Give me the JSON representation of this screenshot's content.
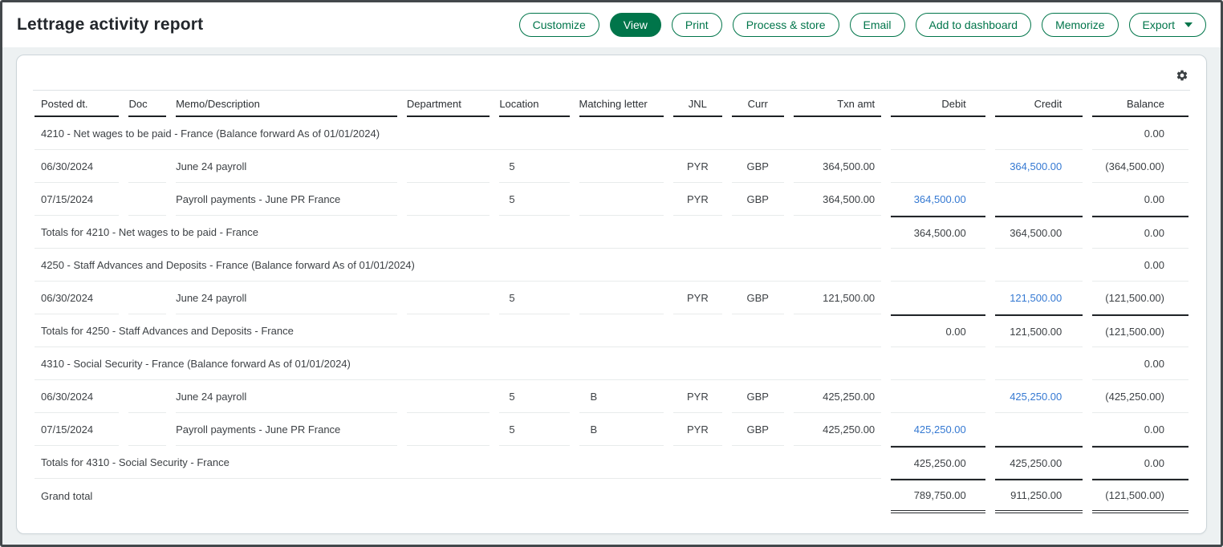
{
  "page": {
    "title": "Lettrage activity report"
  },
  "colors": {
    "accent_green": "#00754a",
    "link_blue": "#3579d2",
    "panel_bg": "#ffffff",
    "page_bg": "#edf1f2"
  },
  "icons": {
    "settings": "gear-icon",
    "export_caret": "chevron-down-icon"
  },
  "toolbar": {
    "buttons": [
      {
        "id": "customize",
        "label": "Customize",
        "variant": "outline"
      },
      {
        "id": "view",
        "label": "View",
        "variant": "filled"
      },
      {
        "id": "print",
        "label": "Print",
        "variant": "outline"
      },
      {
        "id": "process-store",
        "label": "Process & store",
        "variant": "outline"
      },
      {
        "id": "email",
        "label": "Email",
        "variant": "outline"
      },
      {
        "id": "add-to-dashboard",
        "label": "Add to dashboard",
        "variant": "outline"
      },
      {
        "id": "memorize",
        "label": "Memorize",
        "variant": "outline"
      },
      {
        "id": "export",
        "label": "Export",
        "variant": "outline",
        "caret": true
      }
    ]
  },
  "table": {
    "columns": [
      {
        "id": "posted-dt",
        "label": "Posted dt.",
        "align": "left"
      },
      {
        "id": "doc",
        "label": "Doc",
        "align": "left"
      },
      {
        "id": "memo-description",
        "label": "Memo/Description",
        "align": "left"
      },
      {
        "id": "department",
        "label": "Department",
        "align": "left"
      },
      {
        "id": "location",
        "label": "Location",
        "align": "left"
      },
      {
        "id": "matching-letter",
        "label": "Matching letter",
        "align": "left"
      },
      {
        "id": "jnl",
        "label": "JNL",
        "align": "center"
      },
      {
        "id": "curr",
        "label": "Curr",
        "align": "center"
      },
      {
        "id": "txn-amt",
        "label": "Txn amt",
        "align": "right"
      },
      {
        "id": "debit",
        "label": "Debit",
        "align": "right"
      },
      {
        "id": "credit",
        "label": "Credit",
        "align": "right"
      },
      {
        "id": "balance",
        "label": "Balance",
        "align": "right"
      }
    ],
    "rows": [
      {
        "type": "section",
        "label": "4210 - Net wages to be paid - France (Balance forward As of 01/01/2024)",
        "debit": "",
        "credit": "",
        "balance": "0.00"
      },
      {
        "type": "detail",
        "posted": "06/30/2024",
        "doc": "",
        "memo": "June 24 payroll",
        "department": "",
        "location": "5",
        "matching": "",
        "jnl": "PYR",
        "curr": "GBP",
        "txn": "364,500.00",
        "debit": "",
        "credit": "364,500.00",
        "credit_link": true,
        "balance": "(364,500.00)"
      },
      {
        "type": "detail",
        "posted": "07/15/2024",
        "doc": "",
        "memo": "Payroll payments - June PR France",
        "department": "",
        "location": "5",
        "matching": "",
        "jnl": "PYR",
        "curr": "GBP",
        "txn": "364,500.00",
        "debit": "364,500.00",
        "debit_link": true,
        "credit": "",
        "balance": "0.00"
      },
      {
        "type": "totals",
        "label": "Totals for 4210 - Net wages to be paid - France",
        "debit": "364,500.00",
        "credit": "364,500.00",
        "balance": "0.00"
      },
      {
        "type": "section",
        "label": "4250 - Staff Advances and Deposits - France (Balance forward As of 01/01/2024)",
        "debit": "",
        "credit": "",
        "balance": "0.00"
      },
      {
        "type": "detail",
        "posted": "06/30/2024",
        "doc": "",
        "memo": "June 24 payroll",
        "department": "",
        "location": "5",
        "matching": "",
        "jnl": "PYR",
        "curr": "GBP",
        "txn": "121,500.00",
        "debit": "",
        "credit": "121,500.00",
        "credit_link": true,
        "balance": "(121,500.00)"
      },
      {
        "type": "totals",
        "label": "Totals for 4250 - Staff Advances and Deposits - France",
        "debit": "0.00",
        "credit": "121,500.00",
        "balance": "(121,500.00)"
      },
      {
        "type": "section",
        "label": "4310 - Social Security - France (Balance forward As of 01/01/2024)",
        "debit": "",
        "credit": "",
        "balance": "0.00"
      },
      {
        "type": "detail",
        "posted": "06/30/2024",
        "doc": "",
        "memo": "June 24 payroll",
        "department": "",
        "location": "5",
        "matching": "B",
        "jnl": "PYR",
        "curr": "GBP",
        "txn": "425,250.00",
        "debit": "",
        "credit": "425,250.00",
        "credit_link": true,
        "balance": "(425,250.00)"
      },
      {
        "type": "detail",
        "posted": "07/15/2024",
        "doc": "",
        "memo": "Payroll payments - June PR France",
        "department": "",
        "location": "5",
        "matching": "B",
        "jnl": "PYR",
        "curr": "GBP",
        "txn": "425,250.00",
        "debit": "425,250.00",
        "debit_link": true,
        "credit": "",
        "balance": "0.00"
      },
      {
        "type": "totals",
        "label": "Totals for 4310 - Social Security - France",
        "debit": "425,250.00",
        "credit": "425,250.00",
        "balance": "0.00"
      },
      {
        "type": "grand",
        "label": "Grand total",
        "debit": "789,750.00",
        "credit": "911,250.00",
        "balance": "(121,500.00)"
      }
    ]
  }
}
